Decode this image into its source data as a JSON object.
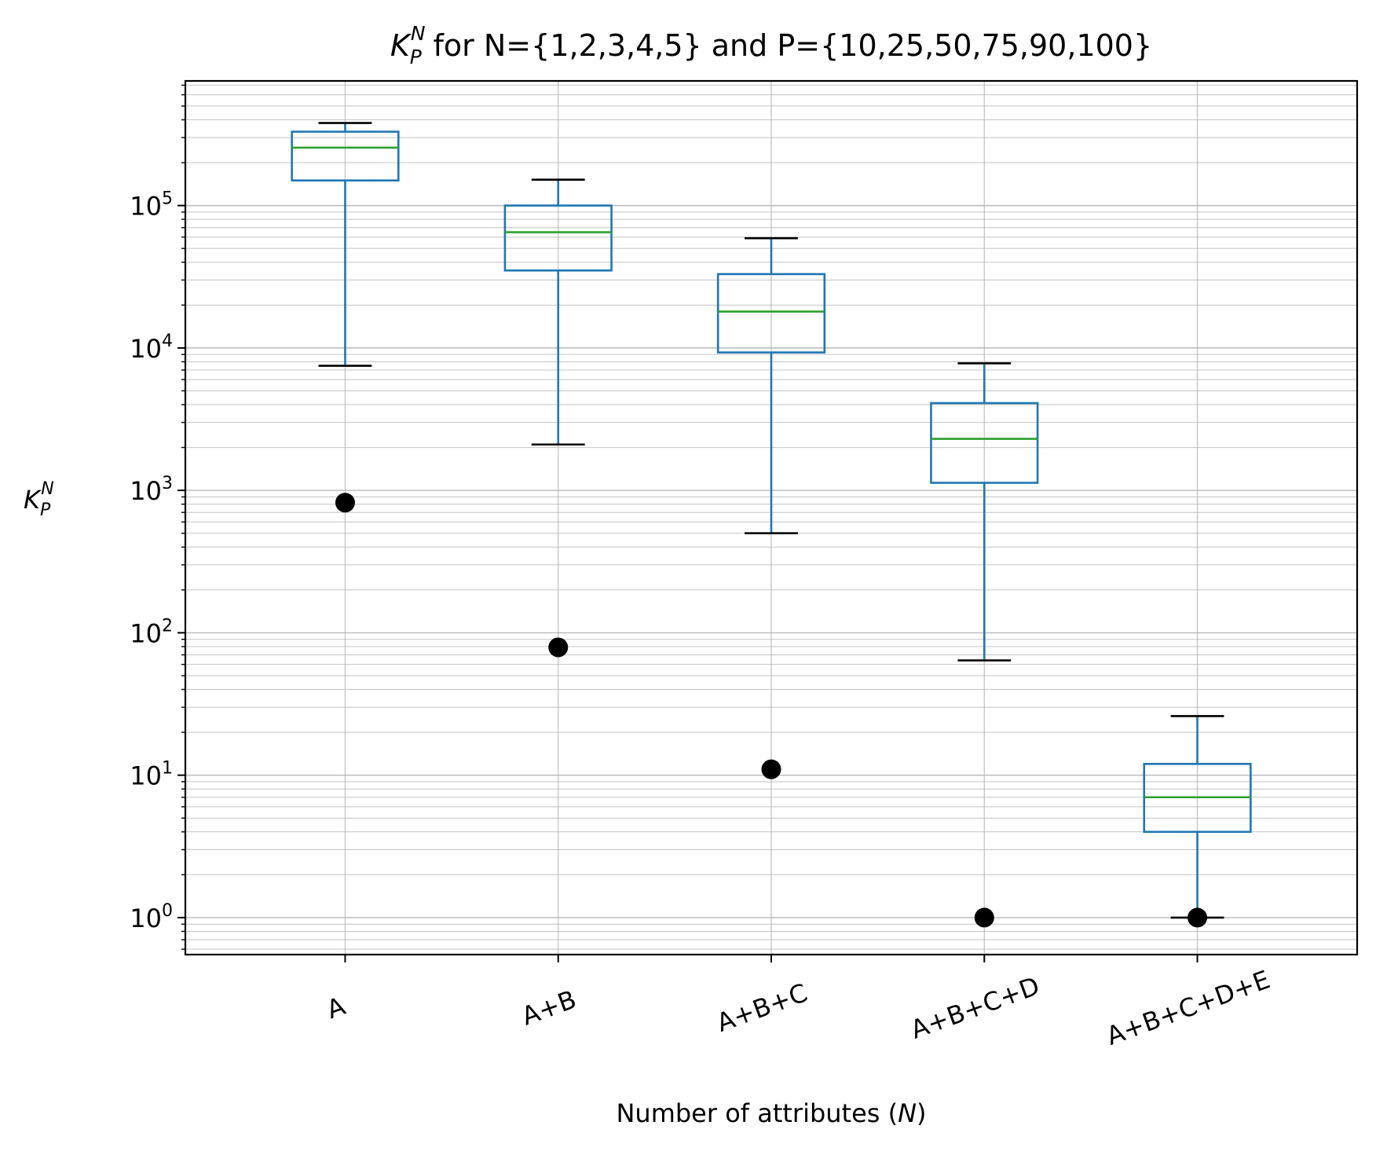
{
  "chart_data": {
    "type": "box",
    "title": "for N={1,2,3,4,5} and P={10,25,50,75,90,100}",
    "title_symbol": {
      "base": "K",
      "sub": "P",
      "sup": "N"
    },
    "xlabel": "Number of attributes (",
    "xlabel_var": "N",
    "xlabel_close": ")",
    "ylabel_symbol": {
      "base": "K",
      "sub": "P",
      "sup": "N"
    },
    "yscale": "log",
    "ylim": [
      0.55,
      750000
    ],
    "y_tick_exponents": [
      "0",
      "1",
      "2",
      "3",
      "4",
      "5"
    ],
    "y_tick_base": "10",
    "grid": "both",
    "categories": [
      "A",
      "A+B",
      "A+B+C",
      "A+B+C+D",
      "A+B+C+D+E"
    ],
    "boxes": [
      {
        "whisker_low": 7500,
        "q1": 150000,
        "median": 255000,
        "q3": 330000,
        "whisker_high": 380000,
        "outliers": [
          820
        ]
      },
      {
        "whisker_low": 2100,
        "q1": 35000,
        "median": 65000,
        "q3": 100000,
        "whisker_high": 152000,
        "outliers": [
          79
        ]
      },
      {
        "whisker_low": 500,
        "q1": 9300,
        "median": 18000,
        "q3": 33000,
        "whisker_high": 59000,
        "outliers": [
          11
        ]
      },
      {
        "whisker_low": 64,
        "q1": 1130,
        "median": 2300,
        "q3": 4100,
        "whisker_high": 7800,
        "outliers": [
          1
        ]
      },
      {
        "whisker_low": 1,
        "q1": 4,
        "median": 7,
        "q3": 12,
        "whisker_high": 26,
        "outliers": [
          1
        ]
      }
    ],
    "colors": {
      "box": "#1f77b4",
      "median": "#2ca02c",
      "whisker_cap": "#000000",
      "outlier": "#000000",
      "grid": "#b0b0b0"
    }
  }
}
